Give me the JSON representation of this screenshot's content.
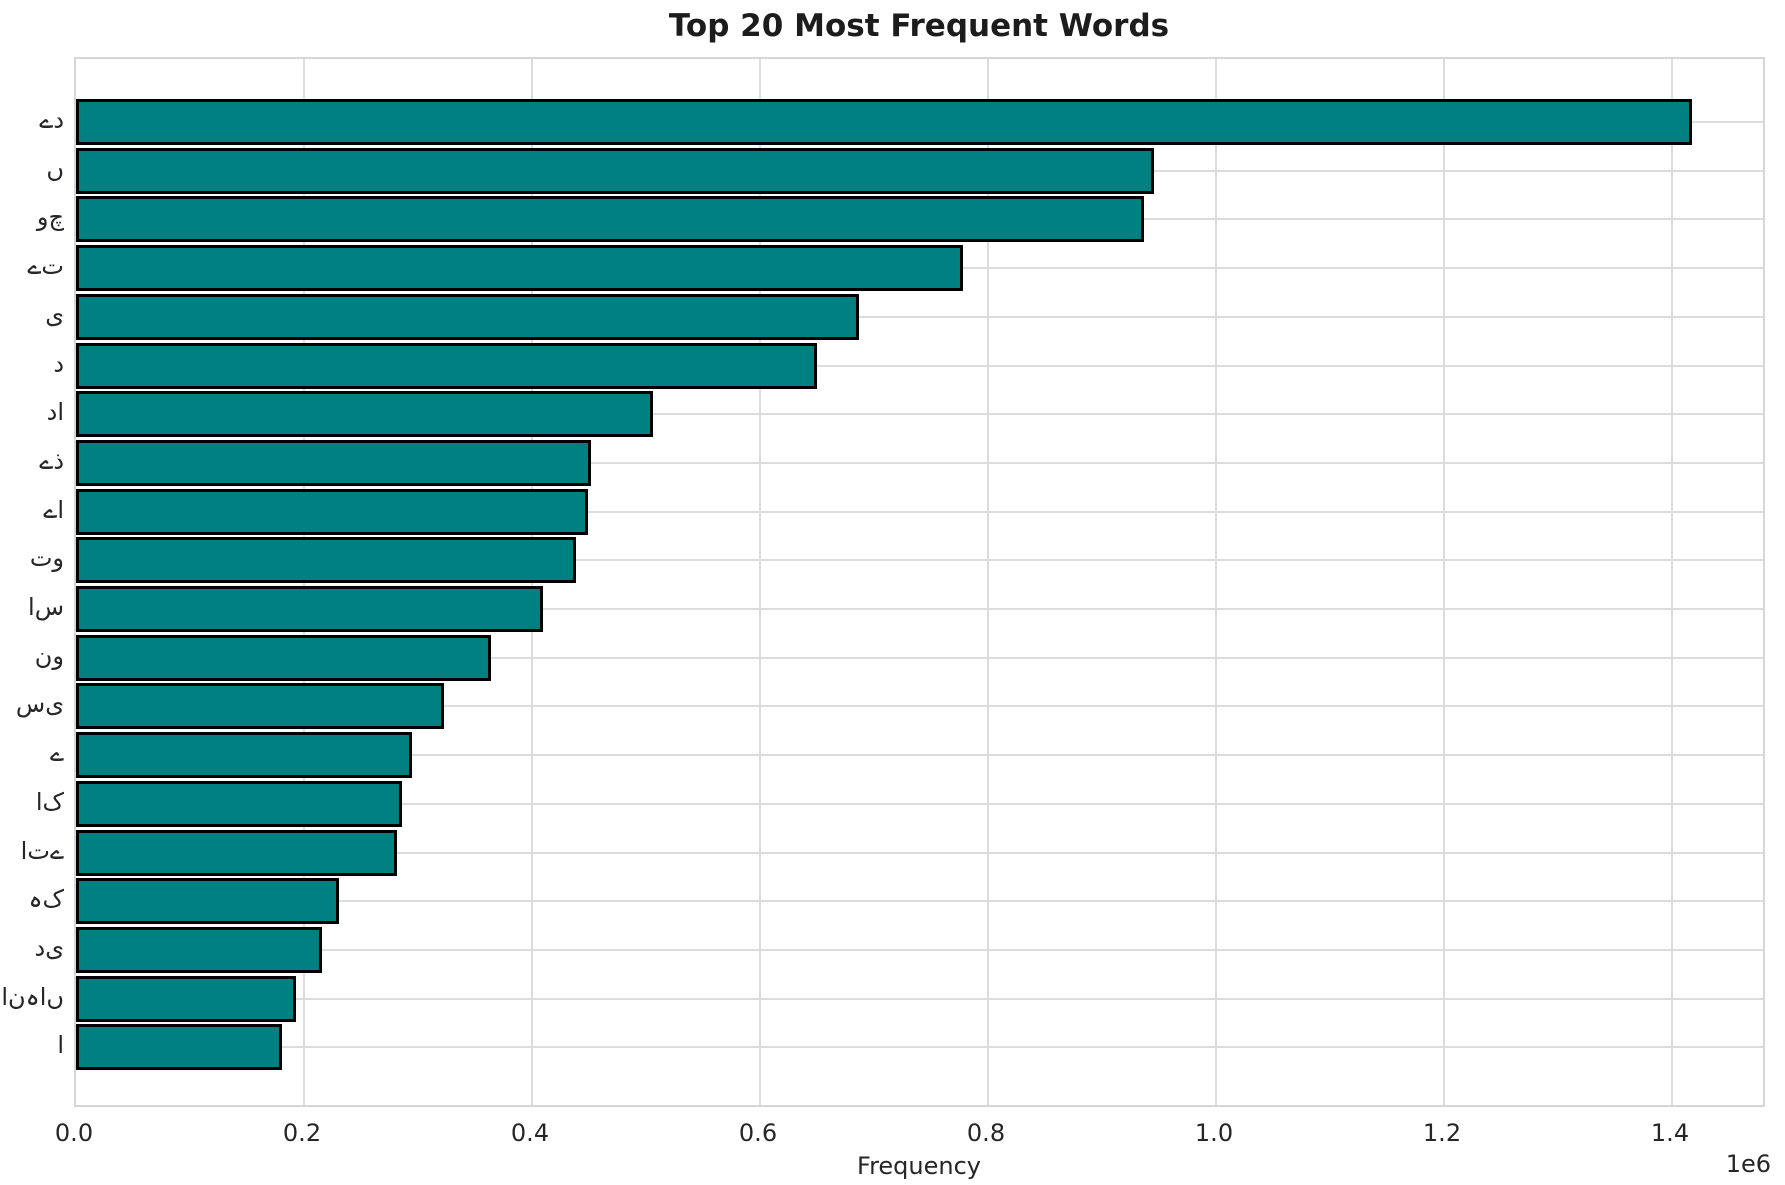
{
  "title": "Top 20 Most Frequent Words",
  "xlabel": "Frequency",
  "offset_label": "1e6",
  "colors": {
    "bar_fill": "#008080",
    "bar_edge": "#000000",
    "grid": "#dcdcdc",
    "text": "#262626"
  },
  "chart_data": {
    "type": "bar",
    "orientation": "horizontal",
    "title": "Top 20 Most Frequent Words",
    "xlabel": "Frequency",
    "ylabel": "",
    "grid": true,
    "legend": false,
    "value_multiplier_label": "1e6",
    "xlim": [
      0,
      1483000
    ],
    "xticks": [
      0,
      200000,
      400000,
      600000,
      800000,
      1000000,
      1200000,
      1400000
    ],
    "xtick_labels": [
      "0.0",
      "0.2",
      "0.4",
      "0.6",
      "0.8",
      "1.0",
      "1.2",
      "1.4"
    ],
    "categories": [
      "ےد",
      "ں",
      "وچ",
      "ےت",
      "ی",
      "د",
      "دا",
      "ےذ",
      "ےا",
      "تو",
      "اس",
      "نو",
      "سی",
      "ے",
      "اک",
      "اتے",
      "ہک",
      "دی",
      "انہاں",
      "ا"
    ],
    "values": [
      1416000,
      944000,
      935000,
      776000,
      685000,
      648000,
      504000,
      450000,
      447000,
      437000,
      408000,
      362000,
      321000,
      293000,
      284000,
      280000,
      229000,
      214000,
      191000,
      179000
    ]
  }
}
